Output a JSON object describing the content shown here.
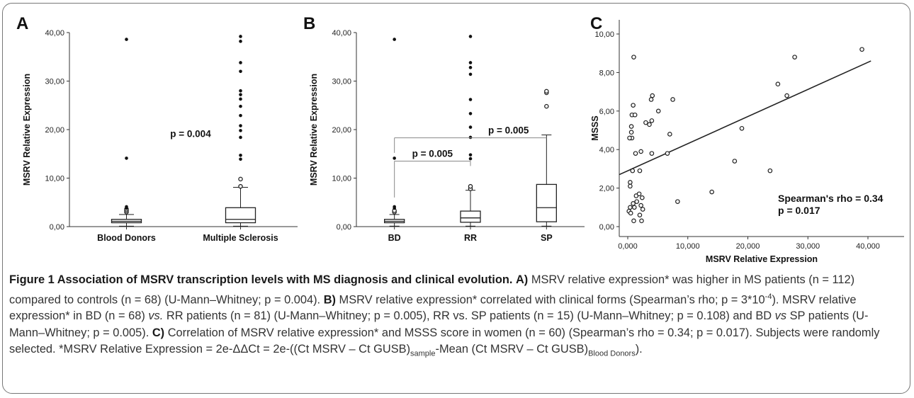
{
  "panels": [
    {
      "label": "A",
      "chart_data": {
        "type": "box",
        "ylabel": "MSRV Relative Expression",
        "ylim": [
          0,
          40
        ],
        "yticks": [
          "0,00",
          "10,00",
          "20,00",
          "30,00",
          "40,00"
        ],
        "categories": [
          "Blood Donors",
          "Multiple Sclerosis"
        ],
        "boxes": [
          {
            "q1": 0.8,
            "median": 1.1,
            "q3": 1.5,
            "whisker_low": 0.1,
            "whisker_high": 2.5,
            "outliers_open": [
              3.0,
              3.3,
              3.6
            ],
            "extremes": [
              3.8,
              4.1,
              14.1,
              38.6
            ]
          },
          {
            "q1": 0.8,
            "median": 1.5,
            "q3": 3.9,
            "whisker_low": 0.1,
            "whisker_high": 8.1,
            "outliers_open": [
              8.3,
              9.8
            ],
            "extremes": [
              13.9,
              14.7,
              18.4,
              19.8,
              20.8,
              22.9,
              24.8,
              26.3,
              27.2,
              28.0,
              32.0,
              33.8,
              38.2,
              39.2
            ]
          }
        ],
        "annotations": [
          "p = 0.004"
        ]
      }
    },
    {
      "label": "B",
      "chart_data": {
        "type": "box",
        "ylabel": "MSRV Relative Expression",
        "ylim": [
          0,
          40
        ],
        "yticks": [
          "0,00",
          "10,00",
          "20,00",
          "30,00",
          "40,00"
        ],
        "categories": [
          "BD",
          "RR",
          "SP"
        ],
        "boxes": [
          {
            "q1": 0.8,
            "median": 1.1,
            "q3": 1.5,
            "whisker_low": 0.1,
            "whisker_high": 2.5,
            "outliers_open": [
              3.0,
              3.3
            ],
            "extremes": [
              3.8,
              4.1,
              14.1,
              38.6
            ]
          },
          {
            "q1": 0.9,
            "median": 1.8,
            "q3": 3.2,
            "whisker_low": 0.1,
            "whisker_high": 7.5,
            "outliers_open": [
              7.8,
              8.3
            ],
            "extremes": [
              14.0,
              14.8,
              18.4,
              20.5,
              23.3,
              26.2,
              31.4,
              32.8,
              33.8,
              39.2
            ]
          },
          {
            "q1": 1.0,
            "median": 3.9,
            "q3": 8.7,
            "whisker_low": 0.1,
            "whisker_high": 18.9,
            "outliers_open": [
              24.8,
              27.6,
              27.9
            ],
            "extremes": []
          }
        ],
        "annotations": [
          {
            "text": "p = 0.005",
            "from": "BD",
            "to": "RR"
          },
          {
            "text": "p = 0.005",
            "from": "BD",
            "to": "SP"
          }
        ]
      }
    },
    {
      "label": "C",
      "chart_data": {
        "type": "scatter",
        "xlabel": "MSRV Relative Expression",
        "ylabel": "MSSS",
        "xlim": [
          0,
          40
        ],
        "ylim": [
          0,
          10
        ],
        "xticks": [
          "0,000",
          "10,000",
          "20,000",
          "30,000",
          "40,000"
        ],
        "yticks": [
          "0,00",
          "2,00",
          "4,00",
          "6,00",
          "8,00",
          "10,00"
        ],
        "points": [
          [
            1.0,
            8.8
          ],
          [
            0.9,
            6.3
          ],
          [
            0.7,
            5.8
          ],
          [
            1.2,
            5.8
          ],
          [
            0.6,
            5.2
          ],
          [
            0.6,
            4.9
          ],
          [
            0.4,
            4.6
          ],
          [
            0.7,
            4.6
          ],
          [
            0.3,
            4.6
          ],
          [
            1.3,
            3.8
          ],
          [
            2.2,
            3.9
          ],
          [
            0.8,
            2.9
          ],
          [
            2.0,
            2.9
          ],
          [
            0.4,
            2.3
          ],
          [
            0.4,
            2.1
          ],
          [
            1.4,
            1.6
          ],
          [
            1.9,
            1.7
          ],
          [
            2.4,
            1.5
          ],
          [
            1.5,
            1.3
          ],
          [
            0.9,
            1.2
          ],
          [
            2.2,
            1.1
          ],
          [
            0.4,
            1.0
          ],
          [
            1.1,
            1.0
          ],
          [
            0.2,
            0.8
          ],
          [
            2.5,
            0.9
          ],
          [
            0.5,
            0.7
          ],
          [
            2.0,
            0.6
          ],
          [
            1.0,
            0.3
          ],
          [
            2.3,
            0.3
          ],
          [
            3.0,
            5.4
          ],
          [
            3.6,
            5.3
          ],
          [
            3.9,
            6.6
          ],
          [
            4.1,
            6.8
          ],
          [
            4.0,
            5.5
          ],
          [
            5.1,
            6.0
          ],
          [
            4.0,
            3.8
          ],
          [
            6.6,
            3.8
          ],
          [
            7.0,
            4.8
          ],
          [
            7.5,
            6.6
          ],
          [
            8.3,
            1.3
          ],
          [
            14.0,
            1.8
          ],
          [
            17.8,
            3.4
          ],
          [
            19.0,
            5.1
          ],
          [
            23.7,
            2.9
          ],
          [
            25.0,
            7.4
          ],
          [
            26.5,
            6.8
          ],
          [
            27.8,
            8.8
          ],
          [
            39.0,
            9.2
          ]
        ],
        "fit_line": {
          "x": [
            0,
            40.5
          ],
          "y": [
            2.7,
            8.6
          ]
        },
        "annotations": [
          "Spearman's rho = 0.34",
          "p = 0.017"
        ]
      }
    }
  ],
  "caption": {
    "title": "Figure 1 Association of MSRV transcription levels with MS diagnosis and clinical evolution.",
    "a_label": "A)",
    "a_text": "MSRV relative expression* was higher in MS patients (n = 112) compared to controls (n = 68) (U-Mann–Whitney; p = 0.004).",
    "b_label": "B)",
    "b_text1": "MSRV relative expression* correlated with clinical forms (Spearman’s rho; p = 3*10",
    "b_sup": "-4",
    "b_text2": "). MSRV relative expression* in BD (n = 68)",
    "b_vs": "vs.",
    "b_text3": "RR patients (n = 81) (U-Mann–Whitney; p = 0.005), RR vs. SP patients (n = 15) (U-Mann–Whitney; p = 0.108) and BD",
    "b_vs2": "vs",
    "b_text4": "SP patients (U-Mann–Whitney; p = 0.005).",
    "c_label": "C)",
    "c_text": "Correlation of MSRV relative expression* and MSSS score in women (n = 60) (Spearman’s rho = 0.34; p = 0.017). Subjects were randomly selected. *MSRV Relative Expression = 2e-ΔΔCt = 2e-((Ct MSRV – Ct GUSB)",
    "c_sub1": "sample",
    "c_text2": "-Mean (Ct MSRV – Ct GUSB)",
    "c_sub2": "Blood Donors",
    "c_text3": ")."
  }
}
